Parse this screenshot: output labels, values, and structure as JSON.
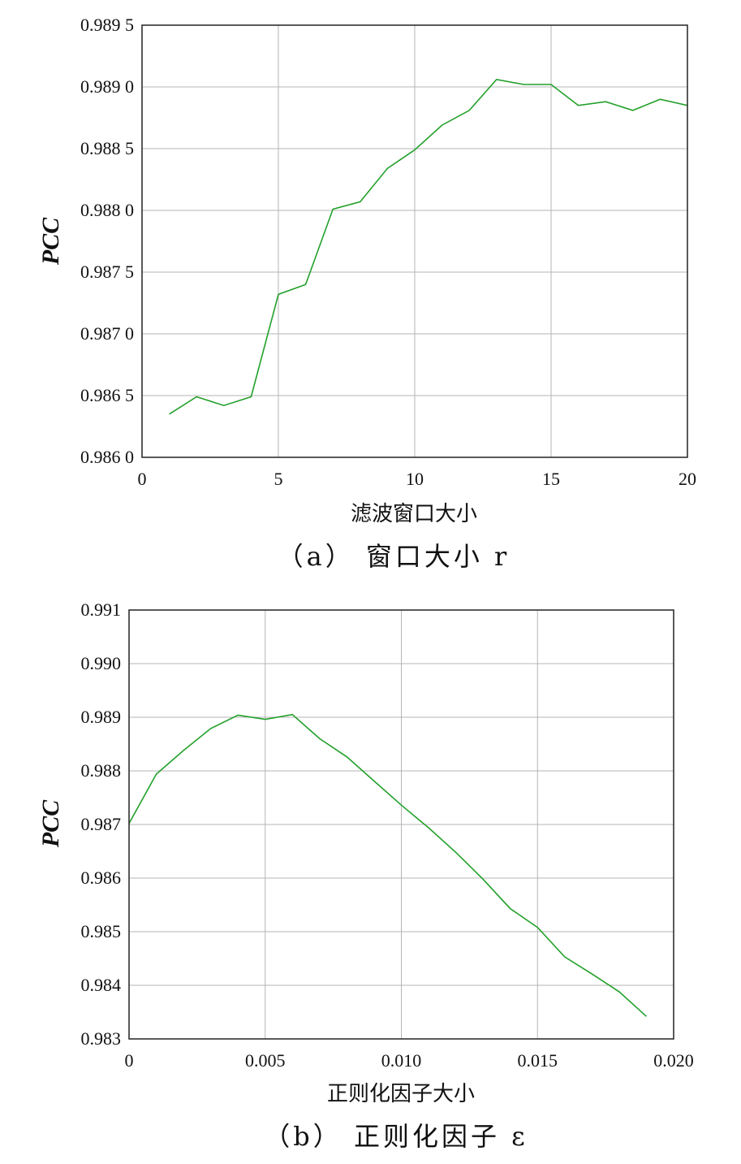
{
  "chart_data": [
    {
      "type": "line",
      "ylabel": "PCC",
      "xlabel": "滤波窗口大小",
      "caption": "（a） 窗口大小 r",
      "xlim": [
        0,
        20
      ],
      "ylim": [
        0.986,
        0.9895
      ],
      "xticks": [
        0,
        5,
        10,
        15,
        20
      ],
      "xtick_labels": [
        "0",
        "5",
        "10",
        "15",
        "20"
      ],
      "yticks": [
        0.986,
        0.9865,
        0.987,
        0.9875,
        0.988,
        0.9885,
        0.989,
        0.9895
      ],
      "ytick_labels": [
        "0.986 0",
        "0.986 5",
        "0.987 0",
        "0.987 5",
        "0.988 0",
        "0.988 5",
        "0.989 0",
        "0.989 5"
      ],
      "grid": true,
      "color": "#22a02a",
      "x": [
        1,
        2,
        3,
        4,
        5,
        6,
        7,
        8,
        9,
        10,
        11,
        12,
        13,
        14,
        15,
        16,
        17,
        18,
        19,
        20
      ],
      "y": [
        0.98635,
        0.98649,
        0.98642,
        0.98649,
        0.98732,
        0.9874,
        0.98801,
        0.98807,
        0.98834,
        0.98849,
        0.98869,
        0.98881,
        0.98906,
        0.98902,
        0.98902,
        0.98885,
        0.98888,
        0.98881,
        0.9889,
        0.98885
      ]
    },
    {
      "type": "line",
      "ylabel": "PCC",
      "xlabel": "正则化因子大小",
      "caption": "（b） 正则化因子 ε",
      "xlim": [
        0,
        0.02
      ],
      "ylim": [
        0.983,
        0.991
      ],
      "xticks": [
        0,
        0.005,
        0.01,
        0.015,
        0.02
      ],
      "xtick_labels": [
        "0",
        "0.005",
        "0.010",
        "0.015",
        "0.020"
      ],
      "yticks": [
        0.983,
        0.984,
        0.985,
        0.986,
        0.987,
        0.988,
        0.989,
        0.99,
        0.991
      ],
      "ytick_labels": [
        "0.983",
        "0.984",
        "0.985",
        "0.986",
        "0.987",
        "0.988",
        "0.989",
        "0.990",
        "0.991"
      ],
      "grid": true,
      "color": "#22a02a",
      "x": [
        0,
        0.001,
        0.002,
        0.003,
        0.004,
        0.005,
        0.006,
        0.007,
        0.008,
        0.009,
        0.01,
        0.011,
        0.012,
        0.013,
        0.014,
        0.015,
        0.016,
        0.017,
        0.018,
        0.019
      ],
      "y": [
        0.98702,
        0.98794,
        0.98838,
        0.98879,
        0.98904,
        0.98896,
        0.98905,
        0.9886,
        0.98826,
        0.98781,
        0.98736,
        0.98694,
        0.98648,
        0.98598,
        0.98543,
        0.98508,
        0.98453,
        0.98421,
        0.98388,
        0.98342
      ]
    }
  ]
}
